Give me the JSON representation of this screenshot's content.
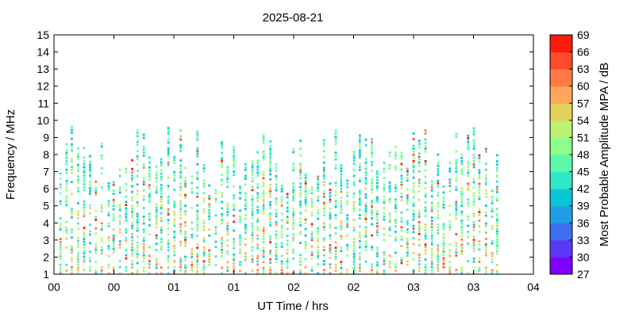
{
  "chart_data": {
    "type": "heatmap",
    "title": "2025-08-21",
    "xlabel": "UT Time / hrs",
    "ylabel": "Frequency / MHz",
    "x_tick_labels": [
      "00",
      "00",
      "01",
      "01",
      "02",
      "02",
      "03",
      "03",
      "04"
    ],
    "xlim": [
      0,
      4
    ],
    "ylim": [
      1,
      15
    ],
    "y_ticks": [
      1,
      2,
      3,
      4,
      5,
      6,
      7,
      8,
      9,
      10,
      11,
      12,
      13,
      14,
      15
    ],
    "grid": false,
    "colorbar": {
      "label": "Most Probable Amplitude MPA / dB",
      "ticks": [
        27,
        30,
        33,
        36,
        39,
        42,
        45,
        48,
        51,
        54,
        57,
        60,
        63,
        66,
        69
      ],
      "colors": [
        "#7f00ff",
        "#5b38f6",
        "#3c6ef0",
        "#1f9ee6",
        "#08c6d6",
        "#2fe8c3",
        "#5cf8a9",
        "#8dfd8c",
        "#bcf26f",
        "#e2d25a",
        "#ffa55c",
        "#ff7a45",
        "#ff4b2b",
        "#ff1a0e"
      ]
    },
    "series": [
      {
        "sweep_times_hrs": [
          0.0,
          0.1,
          0.2,
          0.3,
          0.4,
          0.5,
          0.6,
          0.7,
          0.8,
          0.9,
          1.0,
          1.1,
          1.2,
          1.3,
          1.4,
          1.5,
          1.6,
          1.7,
          1.8,
          1.9,
          2.0,
          2.1,
          2.2,
          2.3,
          2.4,
          2.5,
          2.6,
          2.7,
          2.8,
          2.9,
          3.0,
          3.1,
          3.2,
          3.3,
          3.4,
          3.5,
          3.6,
          3.7
        ],
        "freq_range_MHz": [
          1,
          10
        ],
        "mpa_range_dB": [
          36,
          66
        ]
      }
    ]
  }
}
